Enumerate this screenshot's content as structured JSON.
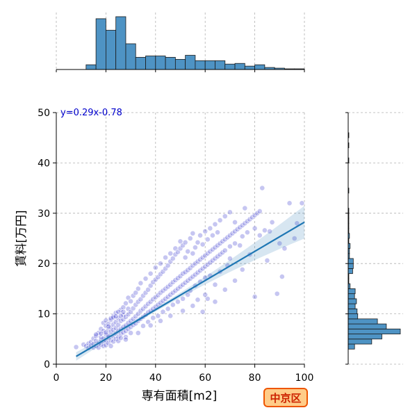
{
  "chart_data": {
    "type": "scatter",
    "subtype": "jointplot with marginal histograms and regression line",
    "xlabel": "専有面積[m2]",
    "ylabel": "賃料[万円]",
    "xlim": [
      0,
      100
    ],
    "ylim": [
      0,
      50
    ],
    "x_ticks": [
      0,
      20,
      40,
      60,
      80,
      100
    ],
    "y_ticks": [
      0,
      10,
      20,
      30,
      40,
      50
    ],
    "grid": true,
    "grid_style": "dashed",
    "regression": {
      "label": "y=0.29x-0.78",
      "slope": 0.29,
      "intercept": -0.78,
      "x_range": [
        8,
        100
      ],
      "color": "#1f77b4"
    },
    "scatter_color": "#3333cc",
    "badge": {
      "text": "中京区",
      "fill": "#ffcc88",
      "stroke": "#ee5500"
    },
    "marginal_x_hist": {
      "bin_width": 4,
      "bin_starts": [
        12,
        16,
        20,
        24,
        28,
        32,
        36,
        40,
        44,
        48,
        52,
        56,
        60,
        64,
        68,
        72,
        76,
        80,
        84,
        88,
        92,
        96
      ],
      "counts": [
        7,
        75,
        58,
        78,
        38,
        18,
        20,
        20,
        18,
        15,
        21,
        13,
        13,
        13,
        8,
        9,
        5,
        7,
        3,
        2,
        1,
        1
      ],
      "color": "#4e93c4"
    },
    "marginal_y_hist": {
      "bin_width": 1,
      "bin_starts": [
        3,
        4,
        5,
        6,
        7,
        8,
        9,
        10,
        11,
        12,
        13,
        14,
        15,
        16,
        17,
        18,
        19,
        20,
        21,
        22,
        23,
        24,
        25,
        26,
        27,
        28,
        29,
        30,
        34,
        40,
        43,
        45
      ],
      "counts": [
        10,
        37,
        53,
        82,
        60,
        46,
        15,
        14,
        11,
        13,
        10,
        11,
        3,
        1,
        1,
        7,
        8,
        8,
        2,
        2,
        3,
        1,
        2,
        1,
        1,
        1,
        1,
        1,
        1,
        1,
        1,
        1
      ],
      "color": "#4e93c4"
    },
    "points": [
      [
        8,
        3.4
      ],
      [
        11,
        3.9
      ],
      [
        12,
        3.6
      ],
      [
        13,
        4.1
      ],
      [
        13,
        3.2
      ],
      [
        14,
        4.4
      ],
      [
        14,
        3.7
      ],
      [
        15,
        4.0
      ],
      [
        15,
        3.3
      ],
      [
        15,
        5.1
      ],
      [
        16,
        4.6
      ],
      [
        16,
        3.6
      ],
      [
        16,
        5.6
      ],
      [
        17,
        4.1
      ],
      [
        17,
        6.2
      ],
      [
        17,
        3.3
      ],
      [
        18,
        4.8
      ],
      [
        18,
        7.0
      ],
      [
        18,
        5.4
      ],
      [
        18,
        3.9
      ],
      [
        19,
        5.1
      ],
      [
        19,
        6.6
      ],
      [
        19,
        8.2
      ],
      [
        19,
        4.4
      ],
      [
        19,
        3.6
      ],
      [
        20,
        5.9
      ],
      [
        20,
        7.6
      ],
      [
        20,
        4.7
      ],
      [
        20,
        8.7
      ],
      [
        20,
        3.8
      ],
      [
        21,
        5.3
      ],
      [
        21,
        6.9
      ],
      [
        21,
        4.2
      ],
      [
        21,
        8.0
      ],
      [
        21,
        5.7
      ],
      [
        22,
        6.4
      ],
      [
        22,
        4.8
      ],
      [
        22,
        7.3
      ],
      [
        22,
        3.6
      ],
      [
        22,
        8.8
      ],
      [
        23,
        5.5
      ],
      [
        23,
        6.8
      ],
      [
        23,
        4.5
      ],
      [
        23,
        7.9
      ],
      [
        23,
        9.6
      ],
      [
        24,
        6.1
      ],
      [
        24,
        7.2
      ],
      [
        24,
        5.0
      ],
      [
        24,
        8.4
      ],
      [
        24,
        10.2
      ],
      [
        25,
        6.6
      ],
      [
        25,
        5.4
      ],
      [
        25,
        7.8
      ],
      [
        25,
        9.1
      ],
      [
        25,
        4.6
      ],
      [
        26,
        7.0
      ],
      [
        26,
        6.0
      ],
      [
        26,
        8.6
      ],
      [
        26,
        10.8
      ],
      [
        26,
        5.2
      ],
      [
        27,
        7.4
      ],
      [
        27,
        8.9
      ],
      [
        27,
        6.3
      ],
      [
        27,
        11.3
      ],
      [
        27,
        9.8
      ],
      [
        28,
        7.7
      ],
      [
        28,
        6.6
      ],
      [
        28,
        9.4
      ],
      [
        28,
        12.1
      ],
      [
        28,
        5.4
      ],
      [
        29,
        8.2
      ],
      [
        29,
        9.9
      ],
      [
        29,
        7.0
      ],
      [
        29,
        11.0
      ],
      [
        29,
        13.2
      ],
      [
        30,
        8.6
      ],
      [
        30,
        10.4
      ],
      [
        30,
        7.4
      ],
      [
        30,
        12.5
      ],
      [
        30,
        6.2
      ],
      [
        31,
        9.0
      ],
      [
        31,
        11.1
      ],
      [
        31,
        13.6
      ],
      [
        31,
        7.8
      ],
      [
        32,
        9.5
      ],
      [
        32,
        11.8
      ],
      [
        32,
        8.1
      ],
      [
        32,
        14.2
      ],
      [
        33,
        10.0
      ],
      [
        33,
        12.4
      ],
      [
        33,
        8.6
      ],
      [
        33,
        15.0
      ],
      [
        34,
        10.6
      ],
      [
        34,
        12.9
      ],
      [
        34,
        9.0
      ],
      [
        34,
        16.1
      ],
      [
        35,
        11.0
      ],
      [
        35,
        13.6
      ],
      [
        35,
        9.4
      ],
      [
        35,
        7.6
      ],
      [
        36,
        11.5
      ],
      [
        36,
        14.2
      ],
      [
        36,
        9.8
      ],
      [
        36,
        17.0
      ],
      [
        37,
        12.0
      ],
      [
        37,
        14.8
      ],
      [
        37,
        10.3
      ],
      [
        37,
        8.4
      ],
      [
        38,
        12.4
      ],
      [
        38,
        15.6
      ],
      [
        38,
        10.6
      ],
      [
        38,
        18.0
      ],
      [
        39,
        12.9
      ],
      [
        39,
        16.3
      ],
      [
        39,
        11.0
      ],
      [
        39,
        9.2
      ],
      [
        40,
        13.3
      ],
      [
        40,
        16.8
      ],
      [
        40,
        11.4
      ],
      [
        40,
        19.2
      ],
      [
        41,
        13.7
      ],
      [
        41,
        17.3
      ],
      [
        41,
        11.8
      ],
      [
        41,
        9.6
      ],
      [
        42,
        14.2
      ],
      [
        42,
        17.9
      ],
      [
        42,
        12.2
      ],
      [
        42,
        20.0
      ],
      [
        43,
        14.6
      ],
      [
        43,
        18.4
      ],
      [
        43,
        12.6
      ],
      [
        43,
        10.4
      ],
      [
        44,
        15.0
      ],
      [
        44,
        19.0
      ],
      [
        44,
        13.0
      ],
      [
        44,
        21.2
      ],
      [
        45,
        15.4
      ],
      [
        45,
        19.6
      ],
      [
        45,
        13.4
      ],
      [
        45,
        11.0
      ],
      [
        46,
        15.8
      ],
      [
        46,
        20.4
      ],
      [
        46,
        13.8
      ],
      [
        46,
        22.0
      ],
      [
        47,
        16.3
      ],
      [
        47,
        21.0
      ],
      [
        47,
        14.2
      ],
      [
        47,
        11.8
      ],
      [
        48,
        16.7
      ],
      [
        48,
        21.8
      ],
      [
        48,
        14.6
      ],
      [
        48,
        23.0
      ],
      [
        49,
        17.1
      ],
      [
        49,
        22.3
      ],
      [
        49,
        15.0
      ],
      [
        49,
        12.4
      ],
      [
        50,
        17.5
      ],
      [
        50,
        23.0
      ],
      [
        50,
        15.4
      ],
      [
        50,
        24.4
      ],
      [
        51,
        18.0
      ],
      [
        51,
        23.6
      ],
      [
        51,
        15.8
      ],
      [
        51,
        13.0
      ],
      [
        52,
        18.3
      ],
      [
        52,
        24.2
      ],
      [
        52,
        16.2
      ],
      [
        52,
        21.2
      ],
      [
        53,
        18.7
      ],
      [
        53,
        13.8
      ],
      [
        53,
        16.6
      ],
      [
        53,
        22.4
      ],
      [
        54,
        19.1
      ],
      [
        54,
        25.0
      ],
      [
        54,
        17.0
      ],
      [
        54,
        14.6
      ],
      [
        55,
        19.6
      ],
      [
        55,
        22.0
      ],
      [
        55,
        17.4
      ],
      [
        55,
        26.0
      ],
      [
        56,
        20.0
      ],
      [
        56,
        23.2
      ],
      [
        56,
        17.8
      ],
      [
        56,
        15.6
      ],
      [
        57,
        20.4
      ],
      [
        57,
        24.2
      ],
      [
        57,
        18.2
      ],
      [
        57,
        12.8
      ],
      [
        58,
        20.8
      ],
      [
        58,
        25.6
      ],
      [
        58,
        18.6
      ],
      [
        58,
        16.4
      ],
      [
        59,
        21.2
      ],
      [
        59,
        23.8
      ],
      [
        59,
        19.0
      ],
      [
        59,
        10.4
      ],
      [
        60,
        21.6
      ],
      [
        60,
        26.4
      ],
      [
        60,
        19.4
      ],
      [
        60,
        17.2
      ],
      [
        61,
        22.0
      ],
      [
        61,
        24.8
      ],
      [
        61,
        19.8
      ],
      [
        61,
        13.0
      ],
      [
        62,
        22.4
      ],
      [
        62,
        27.0
      ],
      [
        62,
        20.2
      ],
      [
        62,
        17.6
      ],
      [
        63,
        22.8
      ],
      [
        63,
        25.6
      ],
      [
        63,
        20.6
      ],
      [
        64,
        23.2
      ],
      [
        64,
        27.8
      ],
      [
        64,
        21.0
      ],
      [
        64,
        15.8
      ],
      [
        65,
        23.6
      ],
      [
        65,
        26.2
      ],
      [
        65,
        21.4
      ],
      [
        66,
        24.0
      ],
      [
        66,
        28.6
      ],
      [
        66,
        21.8
      ],
      [
        66,
        18.4
      ],
      [
        67,
        24.4
      ],
      [
        67,
        22.2
      ],
      [
        68,
        24.8
      ],
      [
        68,
        29.4
      ],
      [
        68,
        22.6
      ],
      [
        69,
        25.2
      ],
      [
        69,
        19.6
      ],
      [
        70,
        25.6
      ],
      [
        70,
        30.2
      ],
      [
        70,
        23.4
      ],
      [
        70,
        21.0
      ],
      [
        71,
        26.0
      ],
      [
        72,
        26.4
      ],
      [
        72,
        28.2
      ],
      [
        72,
        24.0
      ],
      [
        73,
        26.8
      ],
      [
        74,
        27.2
      ],
      [
        74,
        23.6
      ],
      [
        75,
        27.6
      ],
      [
        75,
        25.4
      ],
      [
        76,
        28.0
      ],
      [
        76,
        31.0
      ],
      [
        77,
        28.4
      ],
      [
        77,
        26.2
      ],
      [
        78,
        28.8
      ],
      [
        78,
        21.8
      ],
      [
        79,
        29.2
      ],
      [
        80,
        29.6
      ],
      [
        80,
        27.0
      ],
      [
        81,
        30.0
      ],
      [
        82,
        30.4
      ],
      [
        82,
        25.6
      ],
      [
        83,
        35.0
      ],
      [
        84,
        26.6
      ],
      [
        86,
        26.4
      ],
      [
        87,
        28.2
      ],
      [
        89,
        14.0
      ],
      [
        91,
        17.4
      ],
      [
        92,
        23.0
      ],
      [
        94,
        32.0
      ],
      [
        96,
        25.0
      ],
      [
        97,
        28.0
      ],
      [
        99,
        32.0
      ],
      [
        28,
        4.9
      ],
      [
        33,
        6.2
      ],
      [
        38,
        7.7
      ],
      [
        42,
        8.6
      ],
      [
        46,
        9.6
      ],
      [
        51,
        10.6
      ],
      [
        55,
        11.6
      ],
      [
        60,
        13.8
      ],
      [
        64,
        12.4
      ],
      [
        68,
        14.8
      ],
      [
        72,
        16.6
      ],
      [
        75,
        18.8
      ],
      [
        80,
        13.4
      ],
      [
        85,
        20.6
      ],
      [
        90,
        24.0
      ],
      [
        16,
        5.9
      ],
      [
        18,
        6.1
      ],
      [
        20,
        6.3
      ],
      [
        21,
        7.5
      ],
      [
        22,
        9.1
      ],
      [
        23,
        9.3
      ],
      [
        24,
        9.5
      ],
      [
        25,
        10.4
      ],
      [
        26,
        9.6
      ],
      [
        27,
        10.4
      ]
    ]
  }
}
